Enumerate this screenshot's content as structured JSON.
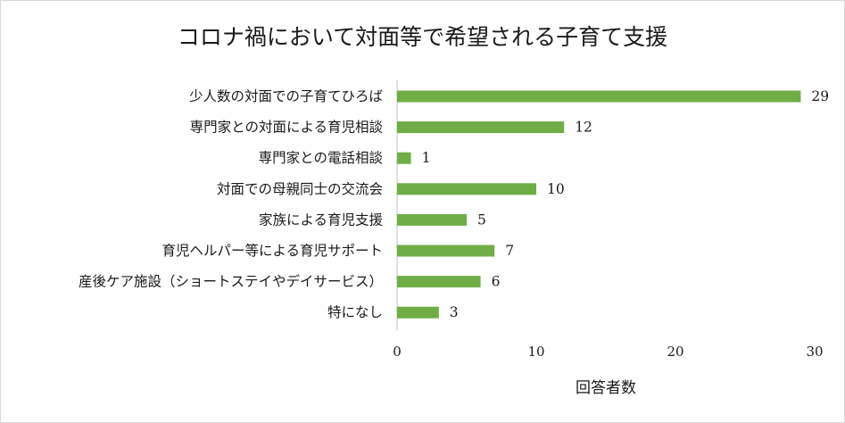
{
  "chart_data": {
    "type": "bar",
    "orientation": "horizontal",
    "title": "コロナ禍において対面等で希望される子育て支援",
    "xlabel": "回答者数",
    "ylabel": "",
    "xlim": [
      0,
      30
    ],
    "xticks": [
      0,
      10,
      20,
      30
    ],
    "grid": false,
    "legend": "none",
    "bar_color": "#70ad47",
    "categories": [
      "少人数の対面での子育てひろば",
      "専門家との対面による育児相談",
      "専門家との電話相談",
      "対面での母親同士の交流会",
      "家族による育児支援",
      "育児ヘルパー等による育児サポート",
      "産後ケア施設（ショートステイやデイサービス）",
      "特になし"
    ],
    "values": [
      29,
      12,
      1,
      10,
      5,
      7,
      6,
      3
    ]
  }
}
